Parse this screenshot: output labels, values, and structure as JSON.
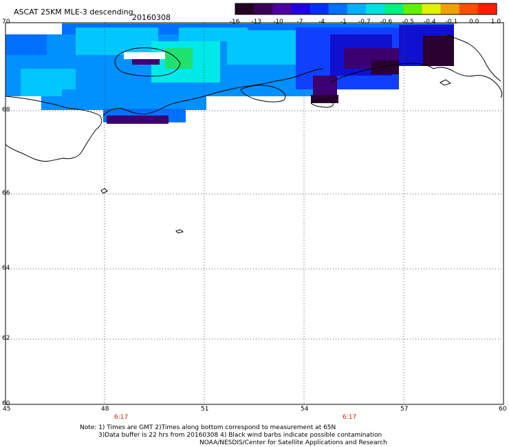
{
  "header": {
    "title": "ASCAT 25KM MLE-3 descending",
    "date": "20160308"
  },
  "colorbar": {
    "ticks": [
      "-16",
      "-13",
      "-10",
      "-7",
      "-4",
      "-1",
      "-0.7",
      "-0.6",
      "-0.5",
      "-0.4",
      "-0.1",
      "0.0",
      "1.0"
    ],
    "colors": [
      "#250020",
      "#3a0058",
      "#5000a0",
      "#2000e0",
      "#0030ff",
      "#0070ff",
      "#00b0ff",
      "#00e0e0",
      "#00f080",
      "#60f000",
      "#e0f000",
      "#f0a000",
      "#ff5000",
      "#ff2000"
    ]
  },
  "map": {
    "lat_labels": [
      "70",
      "68",
      "66",
      "64",
      "62",
      "60"
    ],
    "lon_labels": [
      "45",
      "48",
      "51",
      "54",
      "57",
      "60"
    ],
    "time_labels": [
      "6:17",
      "6:17"
    ],
    "colors": {
      "deep_purple": "#2a0030",
      "purple": "#3c0070",
      "blue_dark": "#1010d0",
      "blue": "#1040ff",
      "blue_mid": "#0070ff",
      "blue_light": "#0090ff",
      "cyan": "#00c8ff",
      "cyan_bright": "#00e8e8",
      "green": "#20e070"
    }
  },
  "footer": {
    "note_line1": "Note: 1) Times are GMT 2)Times along bottom correspond to measurement at 65N",
    "note_line2": "3)Data buffer is 22 hrs from 20160308 4) Black wind barbs indicate possible contamination",
    "credit": "NOAA/NESDIS/Center for Satellite Applications and Research"
  }
}
